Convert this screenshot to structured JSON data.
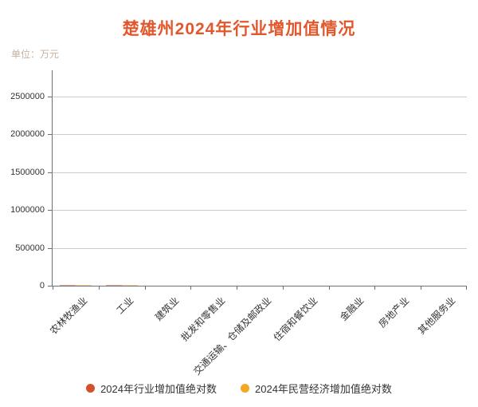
{
  "chart_data": {
    "type": "bar",
    "title": "楚雄州2024年行业增加值情况",
    "unit_label": "单位：万元",
    "categories": [
      "农林牧渔业",
      "工业",
      "建筑业",
      "批发和零售业",
      "交通运输、仓储及邮政业",
      "住宿和餐饮业",
      "金融业",
      "房地产业",
      "其他服务业"
    ],
    "series": [
      {
        "name": "2024年行业增加值绝对数",
        "color": "#d4522b",
        "values": [
          15000,
          15000,
          0,
          0,
          0,
          0,
          0,
          0,
          0
        ]
      },
      {
        "name": "2024年民营经济增加值绝对数",
        "color": "#f5a623",
        "values": [
          15000,
          15000,
          0,
          0,
          0,
          0,
          0,
          0,
          0
        ]
      }
    ],
    "ylim": [
      0,
      2500000
    ],
    "yticks": [
      0,
      500000,
      1000000,
      1500000,
      2000000,
      2500000
    ],
    "grid": true,
    "legend_position": "bottom",
    "colors": {
      "title": "#e2582c",
      "unit_label": "#c9b2a0",
      "axis_line": "#6e7079",
      "gridline": "#cccccc",
      "tick_label": "#333333",
      "legend_text": "#333333"
    }
  }
}
